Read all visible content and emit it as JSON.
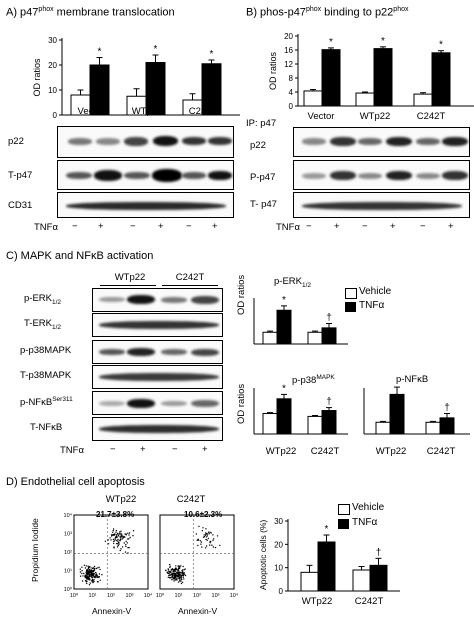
{
  "panelA": {
    "title": "A) p47",
    "title_sup": "phox",
    "title_rest": " membrane  translocation",
    "ylabel": "OD ratios",
    "groups": [
      "Vector",
      "WTp22",
      "C242T"
    ],
    "blot_labels": [
      "p22",
      "T-p47",
      "CD31"
    ],
    "treatment_label": "TNFα",
    "signs": [
      "−",
      "+",
      "−",
      "+",
      "−",
      "+"
    ]
  },
  "panelB": {
    "title": "B) phos-p47",
    "title_sup1": "phox",
    "title_mid": " binding to p22",
    "title_sup2": "phox",
    "ylabel": "OD ratios",
    "ip_label": "IP: p47",
    "groups": [
      "Vector",
      "WTp22",
      "C242T"
    ],
    "blot_labels": [
      "p22",
      "P-p47",
      "T- p47"
    ],
    "treatment_label": "TNFα",
    "signs": [
      "−",
      "+",
      "−",
      "+",
      "−",
      "+"
    ]
  },
  "panelC": {
    "title": "C) MAPK and NFκB activation",
    "groups": [
      "WTp22",
      "C242T"
    ],
    "blot_labels": [
      {
        "main": "p-ERK",
        "sub": "1/2",
        "sup": ""
      },
      {
        "main": "T-ERK",
        "sub": "1/2",
        "sup": ""
      },
      {
        "main": "p-p38MAPK",
        "sub": "",
        "sup": ""
      },
      {
        "main": "T-p38MAPK",
        "sub": "",
        "sup": ""
      },
      {
        "main": "p-NFκB",
        "sub": "",
        "sup": "Ser311"
      },
      {
        "main": "T-NFκB",
        "sub": "",
        "sup": ""
      }
    ],
    "treatment_label": "TNFα",
    "signs": [
      "−",
      "+",
      "−",
      "+"
    ],
    "ylabel": "OD ratios",
    "legend": [
      "Vehicle",
      "TNFα"
    ],
    "erk_title": "p-ERK",
    "erk_sub": "1/2",
    "p38_title": "p-p38",
    "p38_sup": "MAPK",
    "nfkb_title": "p-NFκB"
  },
  "panelD": {
    "title": "D) Endothelial cell apoptosis",
    "flow_titles": [
      "WTp22",
      "C242T"
    ],
    "flow_percents": [
      "21.7±3.8%",
      "10.6±2.3%"
    ],
    "flow_ylabel": "Propidium Iodide",
    "flow_xlabel": "Annexin-V",
    "ylabel": "Apoptotic cells (%)",
    "legend": [
      "Vehicle",
      "TNFα"
    ],
    "groups": [
      "WTp22",
      "C242T"
    ]
  },
  "chart_data": [
    {
      "type": "bar",
      "title": "",
      "ylabel": "OD ratios",
      "categories": [
        "Vector",
        "WTp22",
        "C242T"
      ],
      "ylim": [
        0,
        30
      ],
      "yticks": [
        "0",
        "10",
        "20",
        "30"
      ],
      "series": [
        {
          "name": "",
          "color": "#ffffff",
          "values": [
            8,
            7.5,
            6
          ]
        },
        {
          "name": "",
          "color": "#000000",
          "values": [
            20,
            21,
            20.5
          ]
        }
      ],
      "errors": [
        [
          2,
          3,
          2.5
        ],
        [
          3,
          3,
          1.5
        ]
      ],
      "significance": [
        [
          "",
          "*"
        ],
        [
          "",
          "*"
        ],
        [
          "",
          "*"
        ]
      ]
    },
    {
      "type": "bar",
      "title": "",
      "ylabel": "OD ratios",
      "categories": [
        "Vector",
        "WTp22",
        "C242T"
      ],
      "ylim": [
        0,
        20
      ],
      "yticks": [
        "0",
        "4",
        "8",
        "12",
        "16",
        "20"
      ],
      "series": [
        {
          "name": "",
          "color": "#ffffff",
          "values": [
            4.3,
            3.7,
            3.4
          ]
        },
        {
          "name": "",
          "color": "#000000",
          "values": [
            16.1,
            16.4,
            15.2
          ]
        }
      ],
      "errors": [
        [
          0.4,
          0.3,
          0.4
        ],
        [
          0.5,
          0.5,
          0.6
        ]
      ],
      "significance": [
        [
          "",
          "*"
        ],
        [
          "",
          "*"
        ],
        [
          "",
          "*"
        ]
      ]
    },
    {
      "type": "bar",
      "title": "p-ERK1/2",
      "ylabel": "OD ratios",
      "categories": [
        "WTp22",
        "C242T"
      ],
      "ylim": [
        0,
        15
      ],
      "yticks": [],
      "series": [
        {
          "name": "Vehicle",
          "color": "#ffffff",
          "values": [
            4,
            4
          ]
        },
        {
          "name": "TNFα",
          "color": "#000000",
          "values": [
            11.5,
            5.5
          ]
        }
      ],
      "errors": [
        [
          0.4,
          0.4
        ],
        [
          1.5,
          1.5
        ]
      ],
      "significance": [
        [
          "",
          "*"
        ],
        [
          "",
          "†"
        ]
      ]
    },
    {
      "type": "bar",
      "title": "p-p38MAPK",
      "ylabel": "OD ratios",
      "categories": [
        "WTp22",
        "C242T"
      ],
      "ylim": [
        0,
        15
      ],
      "yticks": [],
      "series": [
        {
          "name": "Vehicle",
          "color": "#ffffff",
          "values": [
            7,
            6
          ]
        },
        {
          "name": "TNFα",
          "color": "#000000",
          "values": [
            12,
            8
          ]
        }
      ],
      "errors": [
        [
          0.3,
          0.3
        ],
        [
          1.5,
          1
        ]
      ],
      "significance": [
        [
          "",
          "*"
        ],
        [
          "",
          "†"
        ]
      ]
    },
    {
      "type": "bar",
      "title": "p-NFκB",
      "ylabel": "",
      "categories": [
        "WTp22",
        "C242T"
      ],
      "ylim": [
        0,
        15
      ],
      "yticks": [],
      "series": [
        {
          "name": "Vehicle",
          "color": "#ffffff",
          "values": [
            4,
            4
          ]
        },
        {
          "name": "TNFα",
          "color": "#000000",
          "values": [
            13.5,
            5.5
          ]
        }
      ],
      "errors": [
        [
          0.3,
          0.3
        ],
        [
          2.5,
          1.5
        ]
      ],
      "significance": [
        [
          "",
          "*"
        ],
        [
          "",
          "†"
        ]
      ]
    },
    {
      "type": "bar",
      "title": "",
      "ylabel": "Apoptotic cells (%)",
      "categories": [
        "WTp22",
        "C242T"
      ],
      "ylim": [
        0,
        30
      ],
      "yticks": [
        "0",
        "10",
        "20",
        "30"
      ],
      "series": [
        {
          "name": "Vehicle",
          "color": "#ffffff",
          "values": [
            8,
            9
          ]
        },
        {
          "name": "TNFα",
          "color": "#000000",
          "values": [
            21,
            11
          ]
        }
      ],
      "errors": [
        [
          3,
          1.5
        ],
        [
          3,
          3
        ]
      ],
      "significance": [
        [
          "",
          "*"
        ],
        [
          "",
          "†"
        ]
      ]
    },
    {
      "type": "scatter",
      "title": "WTp22",
      "xlabel": "Annexin-V",
      "ylabel": "Propidium Iodide",
      "scale": "log",
      "xlim": [
        1,
        10000
      ],
      "ylim": [
        1,
        10000
      ],
      "xticks": [
        "10⁰",
        "10¹",
        "10²",
        "10³",
        "10⁴"
      ],
      "yticks": [
        "10⁰",
        "10¹",
        "10²",
        "10³",
        "10⁴"
      ],
      "annotation": "21.7±3.8%"
    },
    {
      "type": "scatter",
      "title": "C242T",
      "xlabel": "Annexin-V",
      "ylabel": "",
      "scale": "log",
      "xlim": [
        1,
        10000
      ],
      "ylim": [
        1,
        10000
      ],
      "xticks": [
        "10⁰",
        "10¹",
        "10²",
        "10³",
        "10⁴"
      ],
      "yticks": [],
      "annotation": "10.6±2.3%"
    }
  ]
}
